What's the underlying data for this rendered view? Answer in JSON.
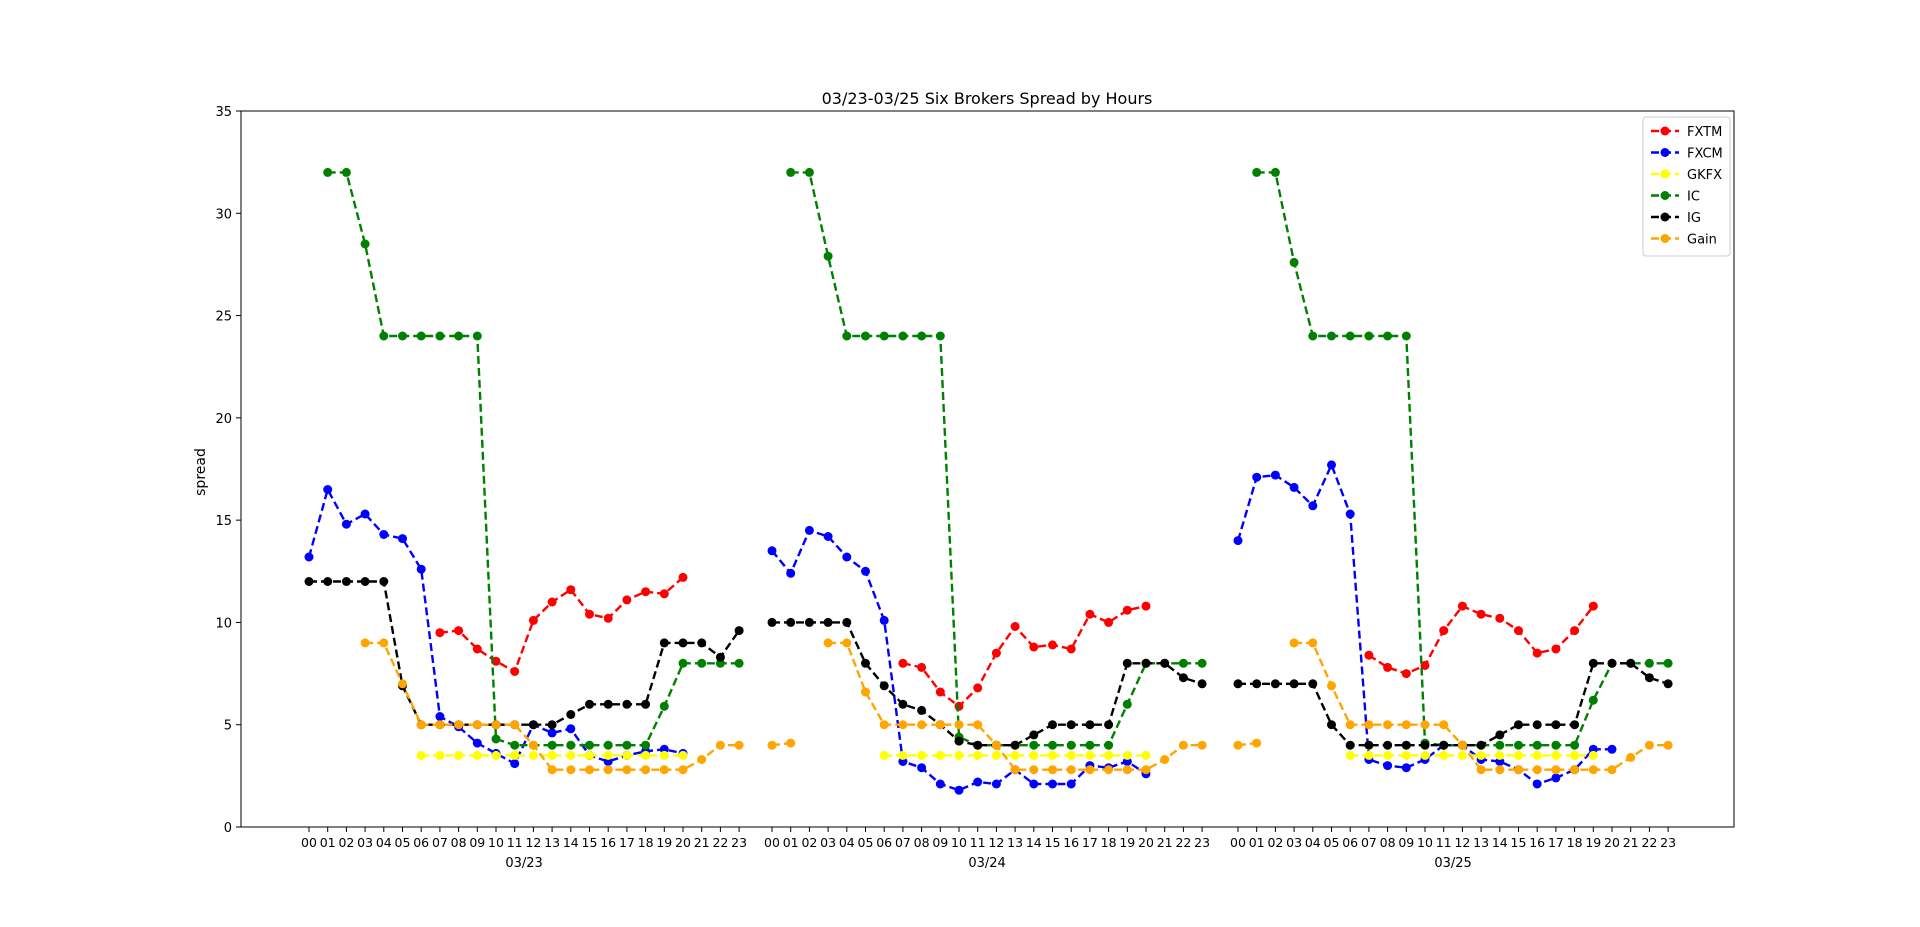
{
  "chart_data": {
    "type": "line",
    "title": "03/23-03/25 Six Brokers Spread by Hours",
    "xlabel": "",
    "ylabel": "spread",
    "ylim": [
      0,
      35
    ],
    "yticks": [
      "0",
      "5",
      "10",
      "15",
      "20",
      "25",
      "30",
      "35"
    ],
    "grid": false,
    "legend_position": "top-right",
    "days": [
      "03/23",
      "03/24",
      "03/25"
    ],
    "hour_labels": [
      "00",
      "01",
      "02",
      "03",
      "04",
      "05",
      "06",
      "07",
      "08",
      "09",
      "10",
      "11",
      "12",
      "13",
      "14",
      "15",
      "16",
      "17",
      "18",
      "19",
      "20",
      "21",
      "22",
      "23"
    ],
    "series": [
      {
        "name": "FXTM",
        "color": "#ff0000",
        "days": [
          [
            null,
            null,
            null,
            null,
            null,
            null,
            null,
            9.5,
            9.6,
            8.7,
            8.1,
            7.6,
            10.1,
            11.0,
            11.6,
            10.4,
            10.2,
            11.1,
            11.5,
            11.4,
            12.2,
            null,
            null,
            null
          ],
          [
            null,
            null,
            null,
            null,
            null,
            null,
            null,
            8.0,
            7.8,
            6.6,
            5.9,
            6.8,
            8.5,
            9.8,
            8.8,
            8.9,
            8.7,
            10.4,
            10.0,
            10.6,
            10.8,
            null,
            null,
            null
          ],
          [
            null,
            null,
            null,
            null,
            null,
            null,
            null,
            8.4,
            7.8,
            7.5,
            7.9,
            9.6,
            10.8,
            10.4,
            10.2,
            9.6,
            8.5,
            8.7,
            9.6,
            10.8,
            null,
            null,
            null,
            null
          ]
        ]
      },
      {
        "name": "FXCM",
        "color": "#0000ff",
        "days": [
          [
            13.2,
            16.5,
            14.8,
            15.3,
            14.3,
            14.1,
            12.6,
            5.4,
            4.9,
            4.1,
            3.6,
            3.1,
            5.0,
            4.6,
            4.8,
            3.5,
            3.2,
            3.5,
            3.7,
            3.8,
            3.6,
            null,
            null,
            null
          ],
          [
            13.5,
            12.4,
            14.5,
            14.2,
            13.2,
            12.5,
            10.1,
            3.2,
            2.9,
            2.1,
            1.8,
            2.2,
            2.1,
            2.8,
            2.1,
            2.1,
            2.1,
            3.0,
            2.9,
            3.2,
            2.6,
            null,
            null,
            null
          ],
          [
            14.0,
            17.1,
            17.2,
            16.6,
            15.7,
            17.7,
            15.3,
            3.3,
            3.0,
            2.9,
            3.3,
            4.0,
            4.0,
            3.3,
            3.2,
            2.8,
            2.1,
            2.4,
            2.8,
            3.8,
            3.8,
            null,
            null,
            null
          ]
        ]
      },
      {
        "name": "GKFX",
        "color": "#ffff00",
        "days": [
          [
            null,
            null,
            null,
            null,
            null,
            null,
            3.5,
            3.5,
            3.5,
            3.5,
            3.5,
            3.5,
            3.5,
            3.5,
            3.5,
            3.5,
            3.5,
            3.5,
            3.5,
            3.5,
            3.5,
            null,
            null,
            null
          ],
          [
            null,
            null,
            null,
            null,
            null,
            null,
            3.5,
            3.5,
            3.5,
            3.5,
            3.5,
            3.5,
            3.5,
            3.5,
            3.5,
            3.5,
            3.5,
            3.5,
            3.5,
            3.5,
            3.5,
            null,
            null,
            null
          ],
          [
            null,
            null,
            null,
            null,
            null,
            null,
            3.5,
            3.5,
            3.5,
            3.5,
            3.5,
            3.5,
            3.5,
            3.5,
            3.5,
            3.5,
            3.5,
            3.5,
            3.5,
            3.5,
            null,
            null,
            null,
            null
          ]
        ]
      },
      {
        "name": "IC",
        "color": "#008000",
        "days": [
          [
            null,
            32,
            32,
            28.5,
            24,
            24,
            24,
            24,
            24,
            24,
            4.3,
            4.0,
            4.0,
            4.0,
            4.0,
            4.0,
            4.0,
            4.0,
            4.0,
            5.9,
            8.0,
            8.0,
            8.0,
            8.0
          ],
          [
            null,
            32,
            32,
            27.9,
            24,
            24,
            24,
            24,
            24,
            24,
            4.4,
            4.0,
            4.0,
            4.0,
            4.0,
            4.0,
            4.0,
            4.0,
            4.0,
            6.0,
            8.0,
            8.0,
            8.0,
            8.0
          ],
          [
            null,
            32,
            32,
            27.6,
            24,
            24,
            24,
            24,
            24,
            24,
            4.1,
            4.0,
            4.0,
            4.0,
            4.0,
            4.0,
            4.0,
            4.0,
            4.0,
            6.2,
            8.0,
            8.0,
            8.0,
            8.0
          ]
        ]
      },
      {
        "name": "IG",
        "color": "#000000",
        "days": [
          [
            12,
            12,
            12,
            12,
            12,
            6.9,
            5.0,
            5.0,
            5.0,
            5.0,
            5.0,
            5.0,
            5.0,
            5.0,
            5.5,
            6.0,
            6.0,
            6.0,
            6.0,
            9.0,
            9.0,
            9.0,
            8.3,
            9.6
          ],
          [
            10,
            10,
            10,
            10,
            10,
            8.0,
            6.9,
            6.0,
            5.7,
            5.0,
            4.2,
            4.0,
            4.0,
            4.0,
            4.5,
            5.0,
            5.0,
            5.0,
            5.0,
            8.0,
            8.0,
            8.0,
            7.3,
            7.0
          ],
          [
            7,
            7,
            7,
            7,
            7,
            5.0,
            4.0,
            4.0,
            4.0,
            4.0,
            4.0,
            4.0,
            4.0,
            4.0,
            4.5,
            5.0,
            5.0,
            5.0,
            5.0,
            8.0,
            8.0,
            8.0,
            7.3,
            7.0
          ]
        ]
      },
      {
        "name": "Gain",
        "color": "#ffa500",
        "days": [
          [
            null,
            null,
            null,
            9.0,
            9.0,
            7.0,
            5.0,
            5.0,
            5.0,
            5.0,
            5.0,
            5.0,
            4.0,
            2.8,
            2.8,
            2.8,
            2.8,
            2.8,
            2.8,
            2.8,
            2.8,
            3.3,
            4.0,
            4.0
          ],
          [
            4.0,
            4.1,
            null,
            9.0,
            9.0,
            6.6,
            5.0,
            5.0,
            5.0,
            5.0,
            5.0,
            5.0,
            4.0,
            2.8,
            2.8,
            2.8,
            2.8,
            2.8,
            2.8,
            2.8,
            2.8,
            3.3,
            4.0,
            4.0
          ],
          [
            4.0,
            4.1,
            null,
            9.0,
            9.0,
            6.9,
            5.0,
            5.0,
            5.0,
            5.0,
            5.0,
            5.0,
            4.0,
            2.8,
            2.8,
            2.8,
            2.8,
            2.8,
            2.8,
            2.8,
            2.8,
            3.4,
            4.0,
            4.0
          ]
        ]
      }
    ]
  }
}
